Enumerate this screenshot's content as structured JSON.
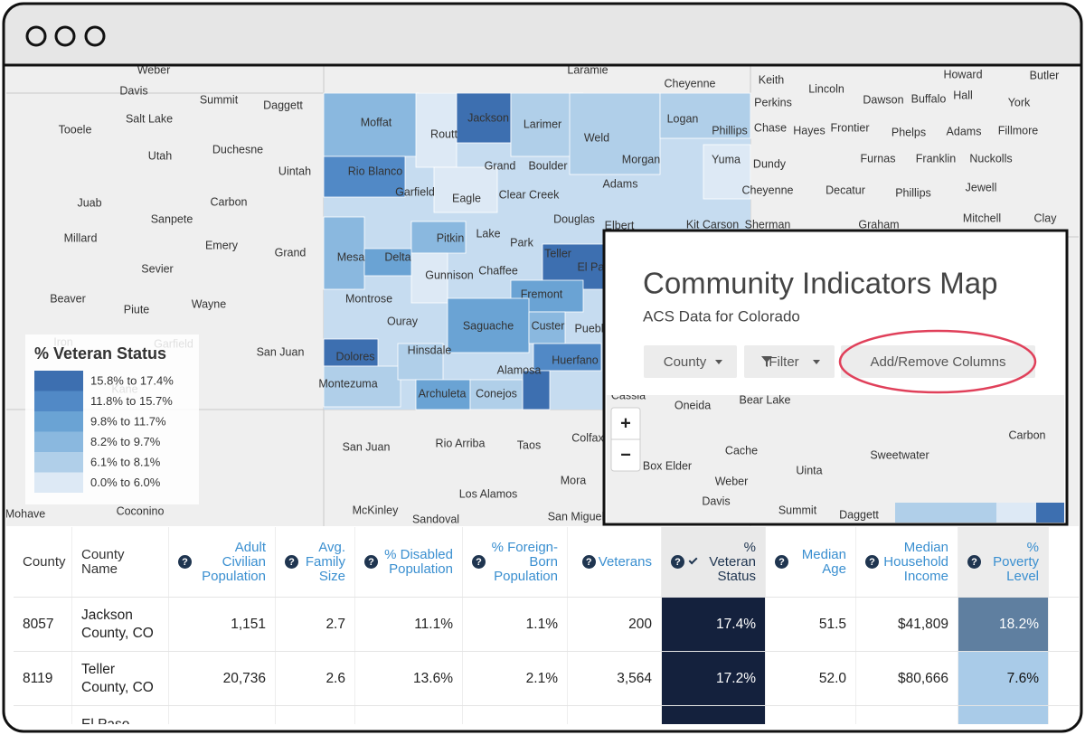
{
  "map": {
    "labels": [
      "Weber",
      "Davis",
      "Summit",
      "Daggett",
      "Salt Lake",
      "Tooele",
      "Utah",
      "Duchesne",
      "Uintah",
      "Carbon",
      "Juab",
      "Sanpete",
      "Millard",
      "Emery",
      "Grand",
      "Sevier",
      "Beaver",
      "Piute",
      "Wayne",
      "Iron",
      "Garfield",
      "San Juan",
      "Kane",
      "Montezuma",
      "Dolores",
      "Moffat",
      "Routt",
      "Jackson",
      "Larimer",
      "Weld",
      "Logan",
      "Phillips",
      "Grand",
      "Boulder",
      "Morgan",
      "Yuma",
      "Rio Blanco",
      "Garfield",
      "Eagle",
      "Clear Creek",
      "Adams",
      "Douglas",
      "Elbert",
      "Kit Carson",
      "Pitkin",
      "Lake",
      "Park",
      "Teller",
      "El Paso",
      "Mesa",
      "Delta",
      "Gunnison",
      "Chaffee",
      "Fremont",
      "Montrose",
      "Ouray",
      "Saguache",
      "Custer",
      "Pueblo",
      "Hinsdale",
      "Huerfano",
      "Alamosa",
      "Archuleta",
      "Conejos",
      "San Juan",
      "Rio Arriba",
      "Taos",
      "Colfax",
      "Mora",
      "Los Alamos",
      "McKinley",
      "Sandoval",
      "San Miguel",
      "Coconino",
      "Mohave",
      "Laramie",
      "Cheyenne",
      "Keith",
      "Lincoln",
      "Howard",
      "Butler",
      "Perkins",
      "Dawson",
      "Buffalo",
      "Hall",
      "York",
      "Chase",
      "Hayes",
      "Frontier",
      "Phelps",
      "Adams",
      "Fillmore",
      "Dundy",
      "Furnas",
      "Franklin",
      "Nuckolls",
      "Cheyenne",
      "Decatur",
      "Phillips",
      "Jewell",
      "Sherman",
      "Graham",
      "Mitchell",
      "Clay"
    ]
  },
  "legend": {
    "title": "% Veteran Status",
    "items": [
      "15.8% to 17.4%",
      "11.8% to 15.7%",
      "9.8% to 11.7%",
      "8.2% to 9.7%",
      "6.1% to 8.1%",
      "0.0% to 6.0%"
    ]
  },
  "panel": {
    "title": "Community Indicators Map",
    "subtitle": "ACS Data for Colorado",
    "buttons": [
      "County",
      "Filter",
      "Add/Remove Columns"
    ],
    "zoom": [
      "+",
      "−"
    ],
    "inset_labels": [
      "Cassia",
      "Oneida",
      "Bear Lake",
      "Carbon",
      "Sweetwater",
      "Cache",
      "Box Elder",
      "Uinta",
      "Weber",
      "Davis",
      "Summit",
      "Daggett"
    ]
  },
  "table": {
    "help_icon": "?",
    "headers": [
      "County",
      "County Name",
      "Adult Civilian Population",
      "Avg. Family Size",
      "% Disabled Population",
      "% Foreign-Born Population",
      "Veterans",
      "% Veteran Status",
      "Median Age",
      "Median Household Income",
      "% Poverty Level"
    ],
    "rows": [
      [
        "8057",
        "Jackson County, CO",
        "1,151",
        "2.7",
        "11.1%",
        "1.1%",
        "200",
        "17.4%",
        "51.5",
        "$41,809",
        "18.2%"
      ],
      [
        "8119",
        "Teller County, CO",
        "20,736",
        "2.6",
        "13.6%",
        "2.1%",
        "3,564",
        "17.2%",
        "52.0",
        "$80,666",
        "7.6%"
      ]
    ],
    "partial_row": "El Paso"
  }
}
